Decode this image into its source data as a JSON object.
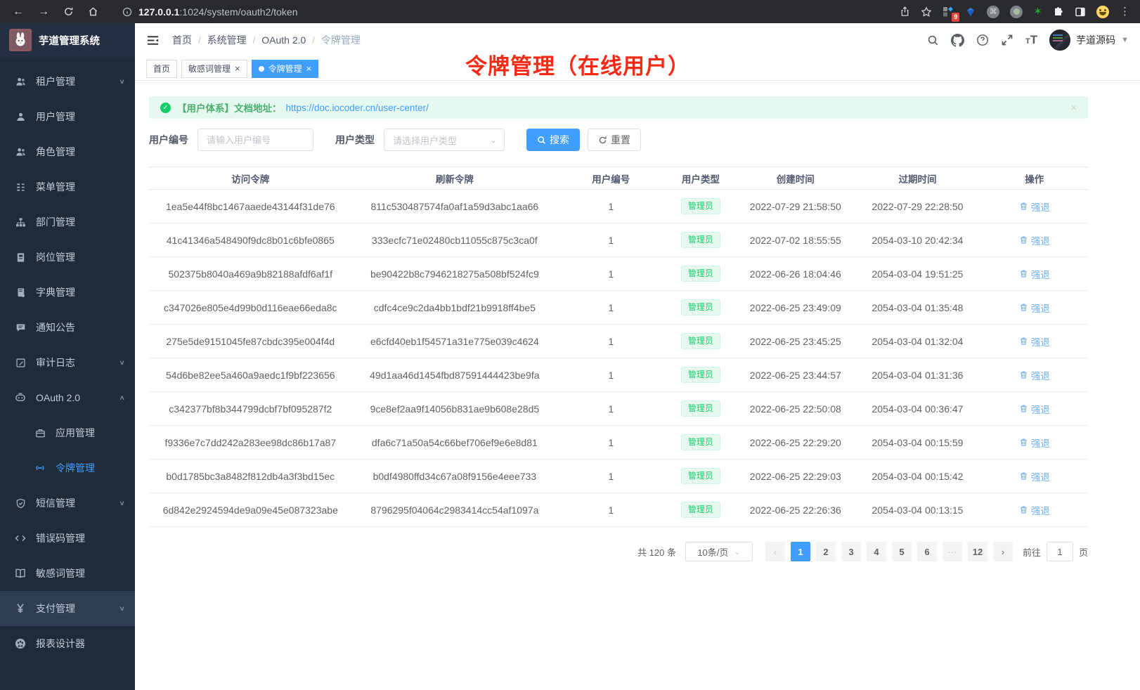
{
  "browser": {
    "url_host": "127.0.0.1",
    "url_rest": ":1024/system/oauth2/token",
    "extension_badge": "9"
  },
  "app_title": "芋道管理系统",
  "sidebar": {
    "items": [
      {
        "label": "租户管理",
        "icon": "users-icon",
        "chevron": "down"
      },
      {
        "label": "用户管理",
        "icon": "user-icon"
      },
      {
        "label": "角色管理",
        "icon": "roles-icon"
      },
      {
        "label": "菜单管理",
        "icon": "menu-tree-icon"
      },
      {
        "label": "部门管理",
        "icon": "org-chart-icon"
      },
      {
        "label": "岗位管理",
        "icon": "id-badge-icon"
      },
      {
        "label": "字典管理",
        "icon": "dictionary-icon"
      },
      {
        "label": "通知公告",
        "icon": "announcement-icon"
      },
      {
        "label": "审计日志",
        "icon": "audit-log-icon",
        "chevron": "down"
      },
      {
        "label": "OAuth 2.0",
        "icon": "robot-icon",
        "chevron": "up"
      },
      {
        "label": "应用管理",
        "icon": "briefcase-icon",
        "child": true
      },
      {
        "label": "令牌管理",
        "icon": "signal-icon",
        "child": true,
        "active": true
      },
      {
        "label": "短信管理",
        "icon": "shield-icon",
        "chevron": "down"
      },
      {
        "label": "错误码管理",
        "icon": "code-icon"
      },
      {
        "label": "敏感词管理",
        "icon": "book-open-icon"
      },
      {
        "label": "支付管理",
        "icon": "yen-icon",
        "chevron": "down",
        "highlighted": true
      },
      {
        "label": "报表设计器",
        "icon": "aperture-icon"
      }
    ]
  },
  "breadcrumb": [
    "首页",
    "系统管理",
    "OAuth 2.0",
    "令牌管理"
  ],
  "header": {
    "user_name": "芋道源码"
  },
  "tabs": [
    {
      "label": "首页",
      "closable": false,
      "active": false
    },
    {
      "label": "敏感词管理",
      "closable": true,
      "active": false
    },
    {
      "label": "令牌管理",
      "closable": true,
      "active": true
    }
  ],
  "annotation": {
    "text": "令牌管理（在线用户）",
    "color": "#f82a16"
  },
  "alert": {
    "text": "【用户体系】文档地址：",
    "link": "https://doc.iocoder.cn/user-center/",
    "close": "×"
  },
  "filters": {
    "user_id_label": "用户编号",
    "user_id_placeholder": "请输入用户编号",
    "user_type_label": "用户类型",
    "user_type_placeholder": "请选择用户类型",
    "search_label": "搜索",
    "reset_label": "重置"
  },
  "table": {
    "columns": [
      "访问令牌",
      "刷新令牌",
      "用户编号",
      "用户类型",
      "创建时间",
      "过期时间",
      "操作"
    ],
    "action_label": "强退",
    "rows": [
      {
        "access": "1ea5e44f8bc1467aaede43144f31de76",
        "refresh": "811c530487574fa0af1a59d3abc1aa66",
        "user_id": "1",
        "user_type": "管理员",
        "created": "2022-07-29 21:58:50",
        "expires": "2022-07-29 22:28:50"
      },
      {
        "access": "41c41346a548490f9dc8b01c6bfe0865",
        "refresh": "333ecfc71e02480cb11055c875c3ca0f",
        "user_id": "1",
        "user_type": "管理员",
        "created": "2022-07-02 18:55:55",
        "expires": "2054-03-10 20:42:34"
      },
      {
        "access": "502375b8040a469a9b82188afdf6af1f",
        "refresh": "be90422b8c7946218275a508bf524fc9",
        "user_id": "1",
        "user_type": "管理员",
        "created": "2022-06-26 18:04:46",
        "expires": "2054-03-04 19:51:25"
      },
      {
        "access": "c347026e805e4d99b0d116eae66eda8c",
        "refresh": "cdfc4ce9c2da4bb1bdf21b9918ff4be5",
        "user_id": "1",
        "user_type": "管理员",
        "created": "2022-06-25 23:49:09",
        "expires": "2054-03-04 01:35:48"
      },
      {
        "access": "275e5de9151045fe87cbdc395e004f4d",
        "refresh": "e6cfd40eb1f54571a31e775e039c4624",
        "user_id": "1",
        "user_type": "管理员",
        "created": "2022-06-25 23:45:25",
        "expires": "2054-03-04 01:32:04"
      },
      {
        "access": "54d6be82ee5a460a9aedc1f9bf223656",
        "refresh": "49d1aa46d1454fbd87591444423be9fa",
        "user_id": "1",
        "user_type": "管理员",
        "created": "2022-06-25 23:44:57",
        "expires": "2054-03-04 01:31:36"
      },
      {
        "access": "c342377bf8b344799dcbf7bf095287f2",
        "refresh": "9ce8ef2aa9f14056b831ae9b608e28d5",
        "user_id": "1",
        "user_type": "管理员",
        "created": "2022-06-25 22:50:08",
        "expires": "2054-03-04 00:36:47"
      },
      {
        "access": "f9336e7c7dd242a283ee98dc86b17a87",
        "refresh": "dfa6c71a50a54c66bef706ef9e6e8d81",
        "user_id": "1",
        "user_type": "管理员",
        "created": "2022-06-25 22:29:20",
        "expires": "2054-03-04 00:15:59"
      },
      {
        "access": "b0d1785bc3a8482f812db4a3f3bd15ec",
        "refresh": "b0df4980ffd34c67a08f9156e4eee733",
        "user_id": "1",
        "user_type": "管理员",
        "created": "2022-06-25 22:29:03",
        "expires": "2054-03-04 00:15:42"
      },
      {
        "access": "6d842e2924594de9a09e45e087323abe",
        "refresh": "8796295f04064c2983414cc54af1097a",
        "user_id": "1",
        "user_type": "管理员",
        "created": "2022-06-25 22:26:36",
        "expires": "2054-03-04 00:13:15"
      }
    ]
  },
  "pagination": {
    "total_label": "共 120 条",
    "page_size": "10条/页",
    "pages": [
      "1",
      "2",
      "3",
      "4",
      "5",
      "6",
      "···",
      "12"
    ],
    "active_page": "1",
    "goto_label": "前往",
    "goto_value": "1",
    "unit_label": "页"
  },
  "colors": {
    "accent_blue": "#409eff",
    "success_green": "#13ce66",
    "annotation_red": "#f82a16",
    "sidebar_bg": "#202b3a"
  }
}
